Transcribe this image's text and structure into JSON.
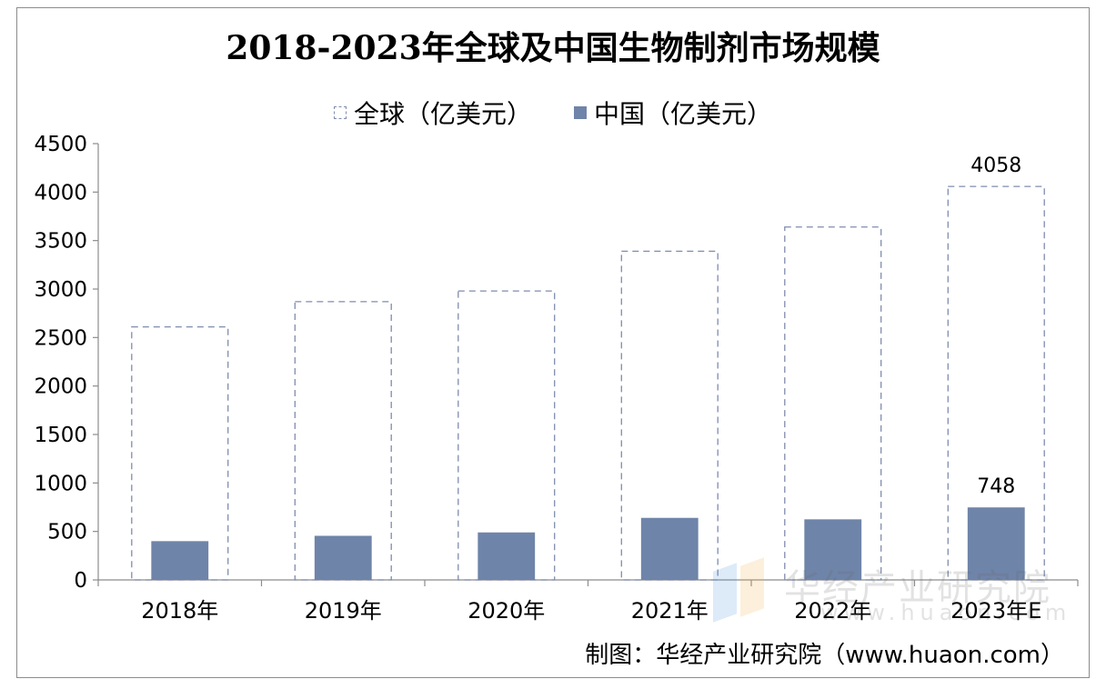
{
  "chart_data": {
    "type": "bar",
    "title": "2018-2023年全球及中国生物制剂市场规模",
    "categories": [
      "2018年",
      "2019年",
      "2020年",
      "2021年",
      "2022年",
      "2023年E"
    ],
    "series": [
      {
        "name": "全球（亿美元）",
        "values": [
          2610,
          2870,
          2980,
          3390,
          3640,
          4058
        ],
        "style": "dashed-outline",
        "color": "#7f8cad"
      },
      {
        "name": "中国（亿美元）",
        "values": [
          400,
          455,
          490,
          640,
          625,
          748
        ],
        "style": "filled",
        "color": "#6f84a9"
      }
    ],
    "data_labels": [
      {
        "series": 0,
        "index": 5,
        "text": "4058"
      },
      {
        "series": 1,
        "index": 5,
        "text": "748"
      }
    ],
    "ylim": [
      0,
      4500
    ],
    "yticks": [
      "0",
      "500",
      "1000",
      "1500",
      "2000",
      "2500",
      "3000",
      "3500",
      "4000",
      "4500"
    ],
    "xlabel": "",
    "ylabel": "",
    "grid": false,
    "legend": "top-center"
  },
  "source_note": "制图：华经产业研究院（www.huaon.com）",
  "watermark": {
    "name": "华经产业研究院",
    "url": "www.huaon.com"
  }
}
